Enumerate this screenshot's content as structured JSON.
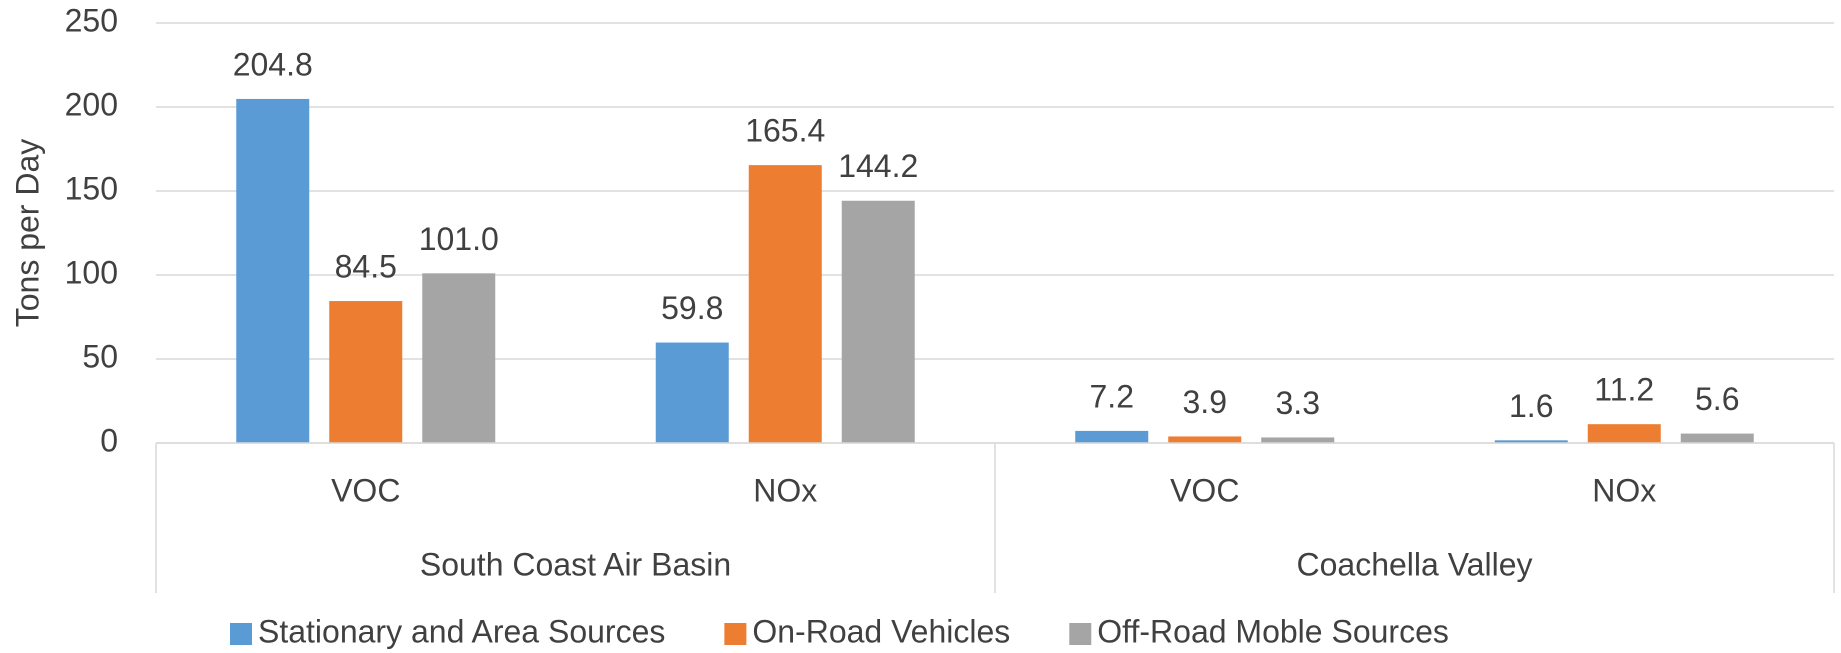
{
  "chart_data": {
    "type": "bar",
    "y_axis_label": "Tons per Day",
    "groups": [
      {
        "name": "South Coast Air Basin",
        "categories": [
          "VOC",
          "NOx"
        ]
      },
      {
        "name": "Coachella Valley",
        "categories": [
          "VOC",
          "NOx"
        ]
      }
    ],
    "series": [
      {
        "name": "Stationary and Area Sources",
        "color": "#5b9bd5",
        "values": [
          204.8,
          59.8,
          7.2,
          1.6
        ],
        "value_labels": [
          "204.8",
          "59.8",
          "7.2",
          "1.6"
        ]
      },
      {
        "name": "On-Road Vehicles",
        "color": "#ed7d31",
        "values": [
          84.5,
          165.4,
          3.9,
          11.2
        ],
        "value_labels": [
          "84.5",
          "165.4",
          "3.9",
          "11.2"
        ]
      },
      {
        "name": "Off-Road Moble Sources",
        "color": "#a5a5a5",
        "values": [
          101.0,
          144.2,
          3.3,
          5.6
        ],
        "value_labels": [
          "101.0",
          "144.2",
          "3.3",
          "5.6"
        ]
      }
    ],
    "ylim": [
      0,
      250
    ],
    "yticks": [
      0,
      50,
      100,
      150,
      200,
      250
    ],
    "grid": true,
    "legend": "bottom"
  }
}
